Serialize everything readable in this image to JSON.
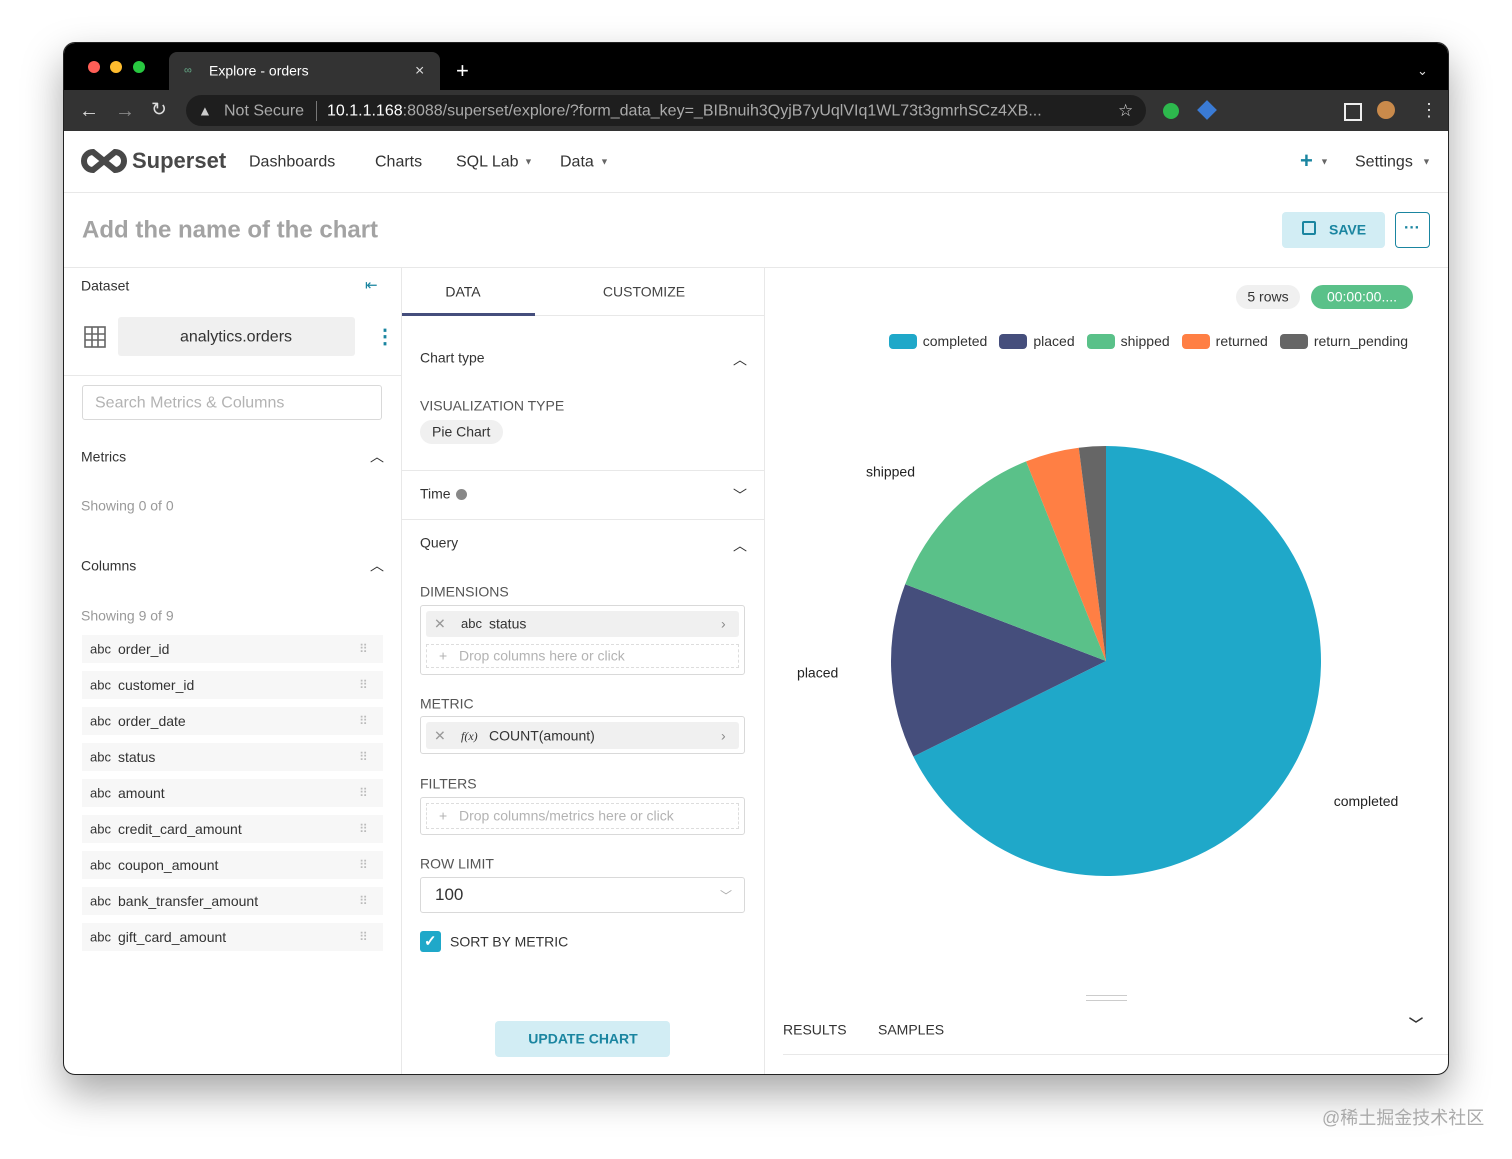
{
  "browser": {
    "tab_title": "Explore - orders",
    "url_warning": "Not Secure",
    "url_host": "10.1.1.168",
    "url_path": ":8088/superset/explore/?form_data_key=_BIBnuih3QyjB7yUqlVIq1WL73t3gmrhSCz4XB..."
  },
  "nav": {
    "brand": "Superset",
    "items": [
      "Dashboards",
      "Charts",
      "SQL Lab",
      "Data"
    ],
    "settings": "Settings"
  },
  "header": {
    "title": "Add the name of the chart",
    "save": "SAVE"
  },
  "dataset_panel": {
    "label": "Dataset",
    "dataset": "analytics.orders",
    "search_placeholder": "Search Metrics & Columns",
    "metrics_title": "Metrics",
    "metrics_showing": "Showing 0 of 0",
    "columns_title": "Columns",
    "columns_showing": "Showing 9 of 9",
    "column_type": "abc",
    "columns": [
      "order_id",
      "customer_id",
      "order_date",
      "status",
      "amount",
      "credit_card_amount",
      "coupon_amount",
      "bank_transfer_amount",
      "gift_card_amount"
    ]
  },
  "control_panel": {
    "tabs": [
      "DATA",
      "CUSTOMIZE"
    ],
    "chart_type_title": "Chart type",
    "viz_type_label": "VISUALIZATION TYPE",
    "viz_type": "Pie Chart",
    "time_title": "Time",
    "query_title": "Query",
    "dimensions_label": "DIMENSIONS",
    "dimension_type": "abc",
    "dimension": "status",
    "dimension_drop": "Drop columns here or click",
    "metric_label": "METRIC",
    "metric_prefix": "f(x)",
    "metric": "COUNT(amount)",
    "filters_label": "FILTERS",
    "filters_drop": "Drop columns/metrics here or click",
    "row_limit_label": "ROW LIMIT",
    "row_limit": 100,
    "sort_by_metric": "SORT BY METRIC",
    "update": "UPDATE CHART"
  },
  "chart_panel": {
    "rows": "5 rows",
    "timer": "00:00:00....",
    "bottom_tabs": [
      "RESULTS",
      "SAMPLES"
    ]
  },
  "chart_data": {
    "type": "pie",
    "categories": [
      "completed",
      "placed",
      "shipped",
      "returned",
      "return_pending"
    ],
    "values": [
      67,
      13,
      13,
      4,
      2
    ],
    "colors": [
      "#1fa8c9",
      "#454e7c",
      "#5ac189",
      "#ff7f44",
      "#666666"
    ],
    "legend": "top-right"
  },
  "watermark": "@稀土掘金技术社区"
}
